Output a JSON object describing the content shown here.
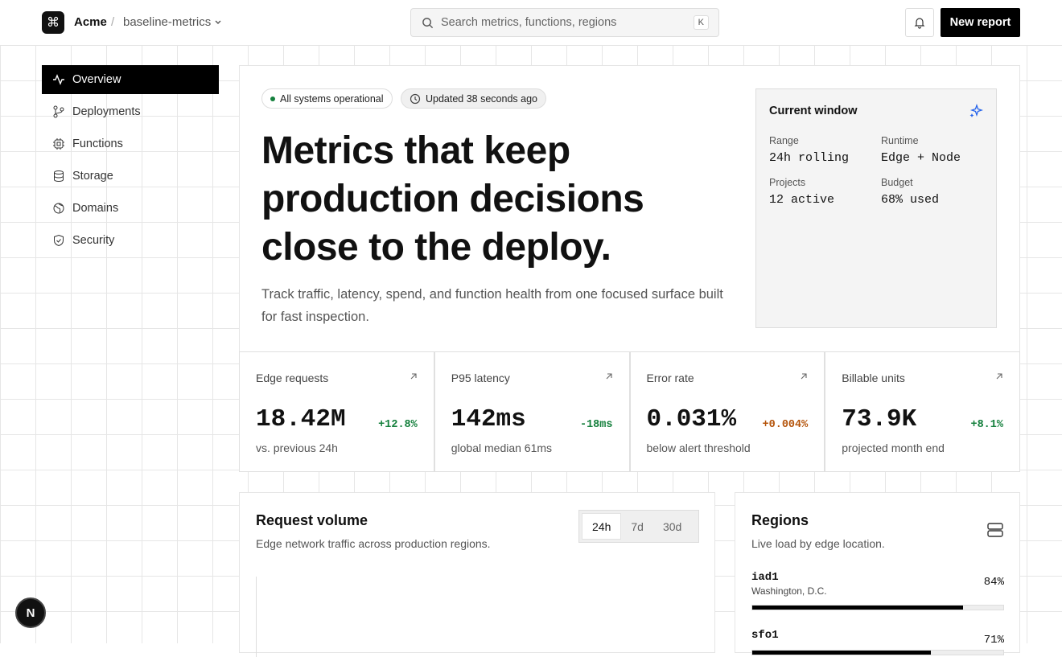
{
  "header": {
    "brand": "Acme",
    "separator": "/",
    "project": "baseline-metrics",
    "search_placeholder": "Search metrics, functions, regions",
    "search_shortcut": "K",
    "button": "New report"
  },
  "nav": [
    {
      "label": "Overview",
      "active": true
    },
    {
      "label": "Deployments",
      "active": false
    },
    {
      "label": "Functions",
      "active": false
    },
    {
      "label": "Storage",
      "active": false
    },
    {
      "label": "Domains",
      "active": false
    },
    {
      "label": "Security",
      "active": false
    }
  ],
  "hero": {
    "badges": [
      "All systems operational",
      "Updated 38 seconds ago"
    ],
    "title_lines": [
      "Metrics that keep",
      "production decisions",
      "close to the deploy."
    ],
    "description": "Track traffic, latency, spend, and function health from one focused surface built for fast inspection."
  },
  "window_card": {
    "title": "Current window",
    "items": [
      {
        "label": "Range",
        "value": "24h rolling"
      },
      {
        "label": "Runtime",
        "value": "Edge + Node"
      },
      {
        "label": "Projects",
        "value": "12 active"
      },
      {
        "label": "Budget",
        "value": "68% used"
      }
    ]
  },
  "stats": [
    {
      "label": "Edge requests",
      "value": "18.42M",
      "change": "+12.8%",
      "tone": "positive",
      "note": "vs. previous 24h"
    },
    {
      "label": "P95 latency",
      "value": "142ms",
      "change": "-18ms",
      "tone": "positive",
      "note": "global median 61ms"
    },
    {
      "label": "Error rate",
      "value": "0.031%",
      "change": "+0.004%",
      "tone": "warning",
      "note": "below alert threshold"
    },
    {
      "label": "Billable units",
      "value": "73.9K",
      "change": "+8.1%",
      "tone": "positive",
      "note": "projected month end"
    }
  ],
  "request_volume": {
    "title": "Request volume",
    "subtitle": "Edge network traffic across production regions.",
    "tabs": [
      {
        "label": "24h",
        "selected": true
      },
      {
        "label": "7d",
        "selected": false
      },
      {
        "label": "30d",
        "selected": false
      }
    ]
  },
  "regions": {
    "title": "Regions",
    "subtitle": "Live load by edge location.",
    "items": [
      {
        "code": "iad1",
        "city": "Washington, D.C.",
        "load": 84,
        "load_label": "84%"
      },
      {
        "code": "sfo1",
        "load": 71,
        "load_label": "71%"
      }
    ]
  },
  "floating_badge": "N"
}
